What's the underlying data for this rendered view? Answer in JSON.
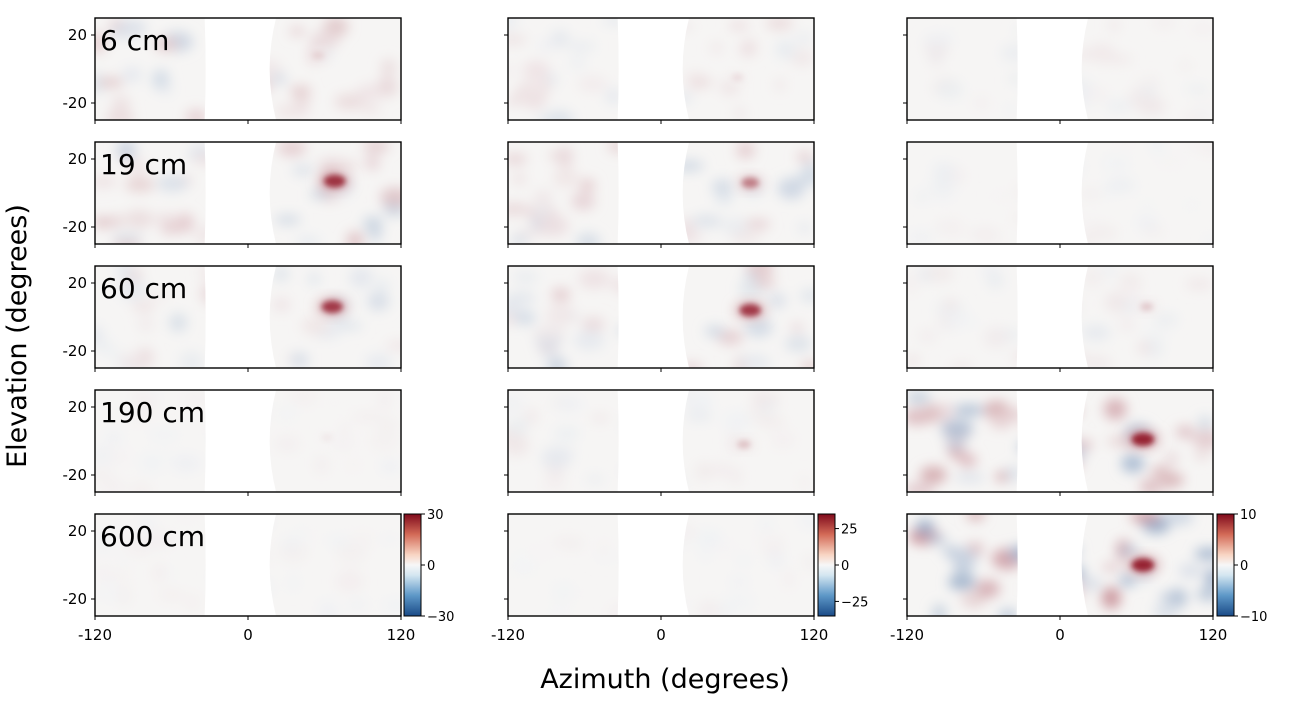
{
  "chart_data": {
    "type": "heatmap",
    "xlabel": "Azimuth (degrees)",
    "ylabel": "Elevation (degrees)",
    "xlim": [
      -120,
      120
    ],
    "ylim": [
      -30,
      30
    ],
    "xticks": [
      "-120",
      "0",
      "120"
    ],
    "yticks": [
      "20",
      "-20"
    ],
    "rows": [
      "6 cm",
      "19 cm",
      "60 cm",
      "190 cm",
      "600 cm"
    ],
    "colormap": "RdBu_r",
    "colors": {
      "low": "#1f4e8c",
      "mid": "#f7f7f7",
      "high": "#8b0a1a"
    },
    "columns": [
      {
        "colorbar_ticks": [
          "30",
          "0",
          "−30"
        ],
        "vmin": -30,
        "vmax": 30
      },
      {
        "colorbar_ticks": [
          "25",
          "0",
          "−25"
        ],
        "vmin": -35,
        "vmax": 35
      },
      {
        "colorbar_ticks": [
          "10",
          "0",
          "−10"
        ],
        "vmin": -10,
        "vmax": 10
      }
    ],
    "peaks": [
      [
        {
          "az": 55,
          "el": 8,
          "value": 5
        },
        {
          "az": 60,
          "el": -5,
          "value": 4
        },
        {
          "az": 0,
          "el": 0,
          "value": 0
        }
      ],
      [
        {
          "az": 68,
          "el": 7,
          "value": 25
        },
        {
          "az": 70,
          "el": 6,
          "value": 18
        },
        {
          "az": 0,
          "el": 0,
          "value": 0
        }
      ],
      [
        {
          "az": 66,
          "el": 6,
          "value": 24
        },
        {
          "az": 70,
          "el": 4,
          "value": 28
        },
        {
          "az": 68,
          "el": 6,
          "value": 2
        }
      ],
      [
        {
          "az": 62,
          "el": 2,
          "value": 2
        },
        {
          "az": 65,
          "el": -2,
          "value": 8
        },
        {
          "az": 65,
          "el": 1,
          "value": 9
        }
      ],
      [
        {
          "az": 0,
          "el": 0,
          "value": 0
        },
        {
          "az": 0,
          "el": 0,
          "value": 0
        },
        {
          "az": 65,
          "el": 0,
          "value": 9
        }
      ]
    ]
  }
}
